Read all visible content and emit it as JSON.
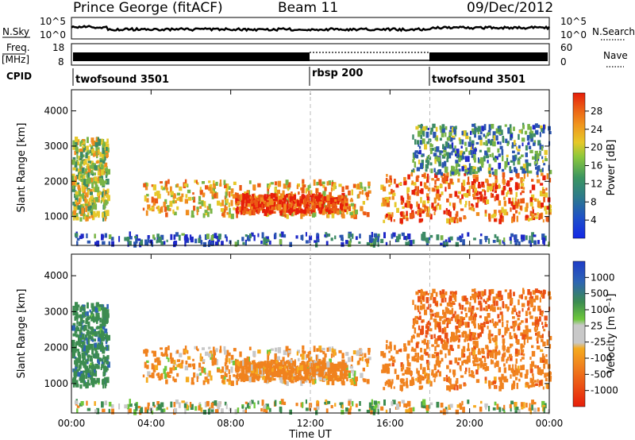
{
  "header": {
    "station": "Prince George (fitACF)",
    "beam": "Beam 11",
    "date": "09/Dec/2012"
  },
  "noise_panel": {
    "left_label": "N.Sky",
    "right_label": "N.Search",
    "tick_top": "10^5",
    "tick_bottom": "10^0"
  },
  "freq_panel": {
    "left_label_1": "Freq.",
    "left_label_2": "[MHz]",
    "right_label": "Nave",
    "left_ticks": [
      "18",
      "8"
    ],
    "right_ticks": [
      "60",
      "0"
    ]
  },
  "cpid_panel": {
    "label": "CPID",
    "segments": [
      {
        "name": "twofsound 3501",
        "start_hour": 0
      },
      {
        "name": "rbsp 200",
        "start_hour": 12
      },
      {
        "name": "twofsound 3501",
        "start_hour": 18
      }
    ]
  },
  "x_axis": {
    "label": "Time UT",
    "ticks": [
      "00:00",
      "04:00",
      "08:00",
      "12:00",
      "16:00",
      "20:00",
      "00:00"
    ]
  },
  "power_panel": {
    "ylabel": "Slant Range [km]",
    "yticks": [
      "1000",
      "2000",
      "3000",
      "4000"
    ],
    "colorbar_label": "Power [dB]",
    "colorbar_ticks": [
      "4",
      "8",
      "12",
      "16",
      "20",
      "24",
      "28"
    ],
    "colors": [
      "#1e28c8",
      "#2a55b0",
      "#3c8a64",
      "#78b446",
      "#e6c82a",
      "#f08c1e",
      "#eb5a14",
      "#e61e0a"
    ]
  },
  "velocity_panel": {
    "ylabel": "Slant Range [km]",
    "yticks": [
      "1000",
      "2000",
      "3000",
      "4000"
    ],
    "colorbar_label": "Velocity [m s⁻¹]",
    "colorbar_ticks": [
      "1000",
      "500",
      "100",
      "25",
      "-25",
      "-100",
      "-500",
      "-1000"
    ],
    "colors": [
      "#1e3cc8",
      "#2d64b4",
      "#3c8c50",
      "#6ec83c",
      "#c8c8c8",
      "#c8c8c8",
      "#f5aa1e",
      "#f0821e",
      "#eb5014",
      "#e61e0a"
    ]
  },
  "chart_data": {
    "type": "heatmap",
    "title": "Prince George (fitACF)",
    "xlabel": "Time UT",
    "ylabel": "Slant Range [km]",
    "x_range_hours": [
      0,
      24
    ],
    "y_range_km": [
      180,
      4600
    ],
    "regions": [
      {
        "t0": 0.0,
        "t1": 1.8,
        "r0": 900,
        "r1": 3200,
        "power_db": 16,
        "velocity": 200
      },
      {
        "t0": 3.5,
        "t1": 14.9,
        "r0": 1000,
        "r1": 2000,
        "power_db": 20,
        "velocity": -100
      },
      {
        "t0": 8.2,
        "t1": 13.8,
        "r0": 1100,
        "r1": 1600,
        "power_db": 28,
        "velocity": -150
      },
      {
        "t0": 15.5,
        "t1": 24.0,
        "r0": 850,
        "r1": 2200,
        "power_db": 24,
        "velocity": -200
      },
      {
        "t0": 17.0,
        "t1": 24.0,
        "r0": 2200,
        "r1": 3600,
        "power_db": 10,
        "velocity": -300
      },
      {
        "t0": 0.0,
        "t1": 24.0,
        "r0": 200,
        "r1": 500,
        "power_db": 6,
        "velocity": 0
      }
    ]
  }
}
